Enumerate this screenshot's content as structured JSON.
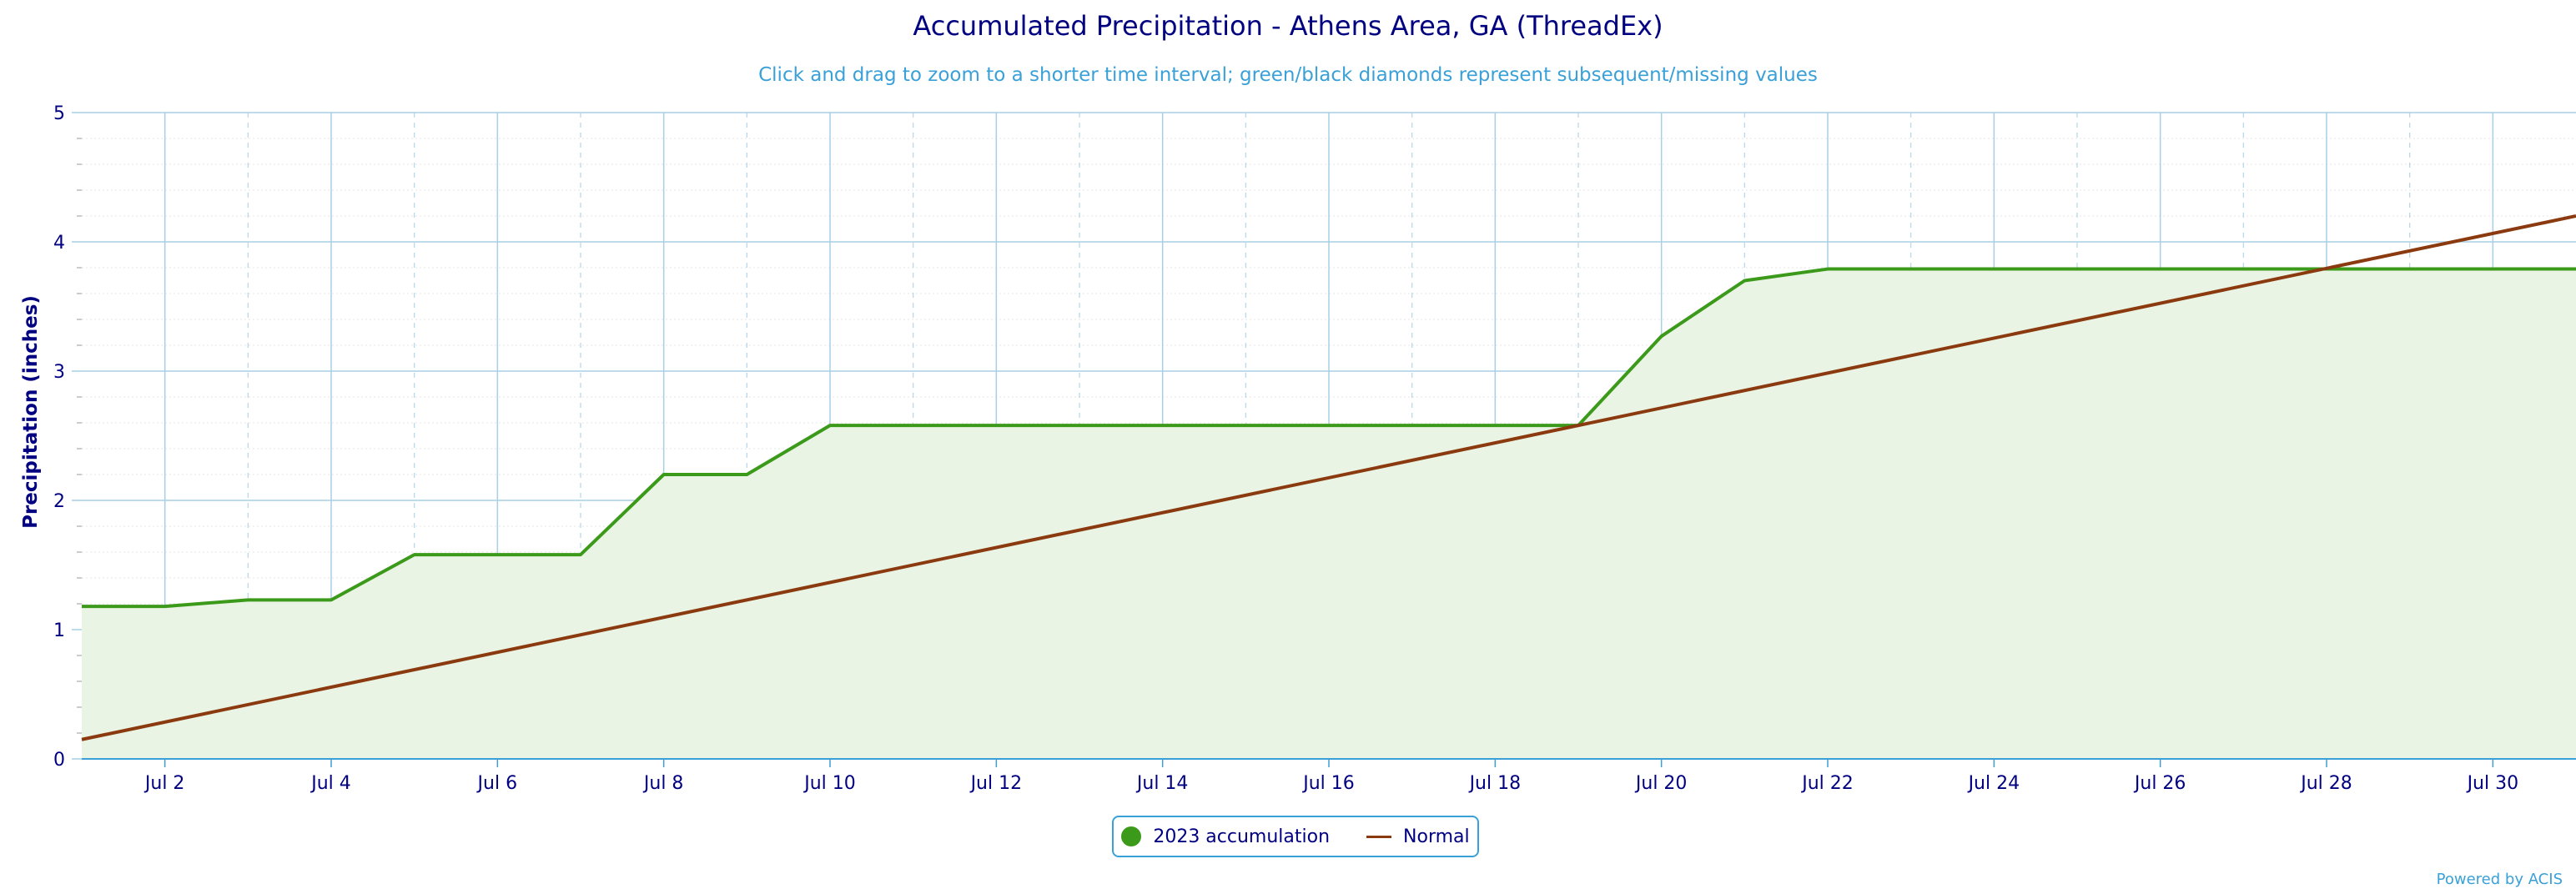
{
  "chart_data": {
    "type": "line",
    "title": "Accumulated Precipitation - Athens Area, GA (ThreadEx)",
    "subtitle": "Click and drag to zoom to a shorter time interval; green/black diamonds represent subsequent/missing values",
    "xlabel": "",
    "ylabel": "Precipitation (inches)",
    "x_tick_labels": [
      "Jul 2",
      "Jul 4",
      "Jul 6",
      "Jul 8",
      "Jul 10",
      "Jul 12",
      "Jul 14",
      "Jul 16",
      "Jul 18",
      "Jul 20",
      "Jul 22",
      "Jul 24",
      "Jul 26",
      "Jul 28",
      "Jul 30"
    ],
    "x_tick_days": [
      2,
      4,
      6,
      8,
      10,
      12,
      14,
      16,
      18,
      20,
      22,
      24,
      26,
      28,
      30
    ],
    "y_ticks": [
      0,
      1,
      2,
      3,
      4,
      5
    ],
    "ylim": [
      0,
      5
    ],
    "xlim": [
      1,
      31
    ],
    "grid": true,
    "legend_position": "bottom-center",
    "series": [
      {
        "name": "2023 accumulation",
        "color": "#3c9a1b",
        "fill": "#eaf4e4",
        "x": [
          1,
          2,
          3,
          4,
          5,
          6,
          7,
          8,
          9,
          10,
          11,
          12,
          13,
          14,
          15,
          16,
          17,
          18,
          19,
          20,
          21,
          22,
          23,
          24,
          25,
          26,
          27,
          28,
          29,
          30,
          31
        ],
        "values": [
          1.18,
          1.18,
          1.23,
          1.23,
          1.58,
          1.58,
          1.58,
          2.2,
          2.2,
          2.58,
          2.58,
          2.58,
          2.58,
          2.58,
          2.58,
          2.58,
          2.58,
          2.58,
          2.58,
          3.27,
          3.7,
          3.79,
          3.79,
          3.79,
          3.79,
          3.79,
          3.79,
          3.79,
          3.79,
          3.79,
          3.79
        ]
      },
      {
        "name": "Normal",
        "color": "#8b3a0f",
        "x": [
          1,
          31
        ],
        "values": [
          0.15,
          4.2
        ]
      }
    ]
  },
  "legend": {
    "items": [
      {
        "label": "2023 accumulation",
        "color": "#3c9a1b",
        "symbol": "dot"
      },
      {
        "label": "Normal",
        "color": "#8b3a0f",
        "symbol": "line"
      }
    ]
  },
  "credit": "Powered by ACIS",
  "colors": {
    "title": "#000080",
    "subtitle": "#3aa0d8",
    "grid": "#a8cfe6",
    "minor_grid": "#e4e4e4",
    "axis": "#3aa0d8"
  }
}
